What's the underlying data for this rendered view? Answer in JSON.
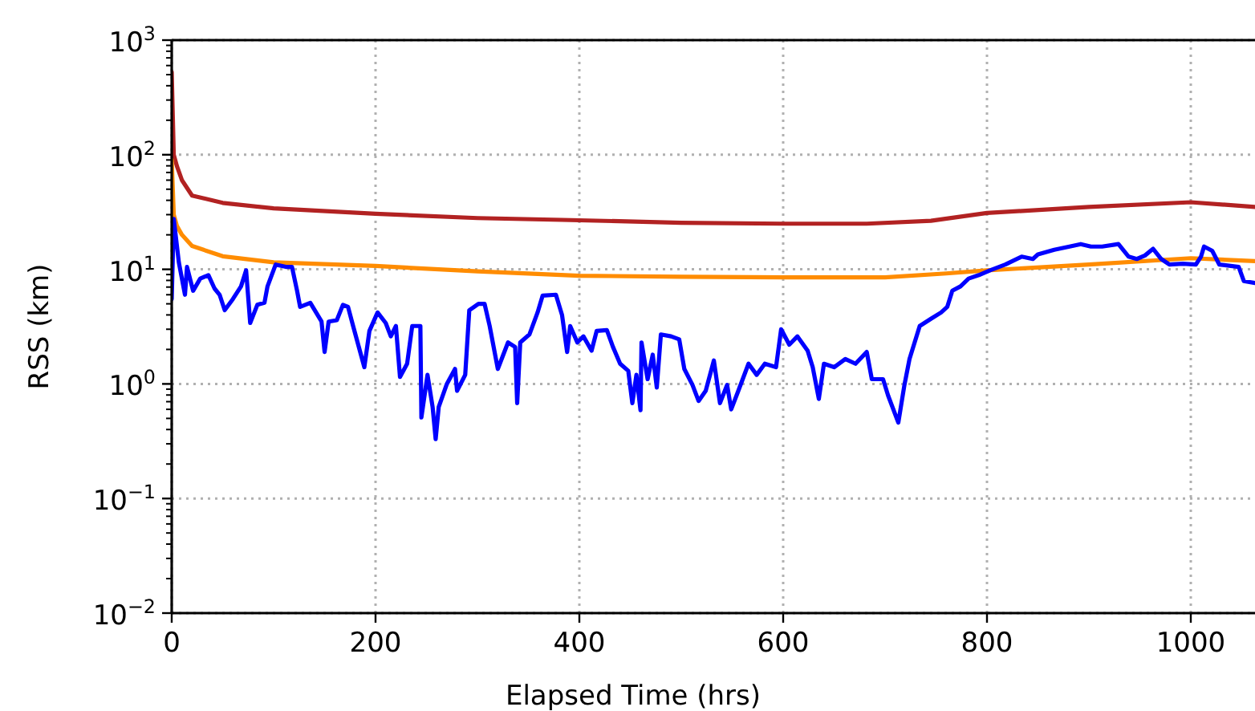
{
  "chart_data": {
    "type": "line",
    "xlabel": "Elapsed Time (hrs)",
    "ylabel": "RSS (km)",
    "log": "y",
    "grid": true,
    "marker": "none",
    "line_style": "solid",
    "xlim": [
      0,
      1063
    ],
    "xticks": [
      0,
      200,
      400,
      600,
      800,
      1000
    ],
    "ylim": [
      0.01,
      1000
    ],
    "yticks": [
      {
        "value": 0.01,
        "label": "10$^{−2}$"
      },
      {
        "value": 0.1,
        "label": "10$^{−1}$"
      },
      {
        "value": 1,
        "label": "10$^{0}$"
      },
      {
        "value": 10,
        "label": "10$^{1}$"
      },
      {
        "value": 100,
        "label": "10$^{2}$"
      },
      {
        "value": 1000,
        "label": "10$^{3}$"
      }
    ],
    "series": [
      {
        "color": "#b22222",
        "x": [
          0,
          2,
          5,
          10,
          20,
          50,
          100,
          200,
          300,
          383,
          500,
          600,
          682,
          745,
          800,
          900,
          1000,
          1063
        ],
        "values": [
          525,
          100,
          80,
          60,
          44,
          38,
          34,
          30.5,
          28,
          27,
          25.5,
          25,
          25,
          26.5,
          31,
          35,
          38.5,
          35
        ]
      },
      {
        "color": "#ff8c00",
        "x": [
          0,
          2,
          5,
          10,
          20,
          50,
          100,
          200,
          300,
          400,
          500,
          600,
          700,
          760,
          800,
          900,
          1000,
          1063
        ],
        "values": [
          90,
          30,
          24,
          20,
          16,
          13,
          11.5,
          10.7,
          9.6,
          8.8,
          8.6,
          8.5,
          8.5,
          9.2,
          9.8,
          11,
          12.5,
          11.8
        ]
      },
      {
        "color": "#0000ff",
        "x": [
          0,
          2,
          7,
          13,
          15,
          21,
          28,
          36,
          42,
          47,
          52,
          60,
          68,
          73,
          77,
          84,
          91,
          94,
          102,
          112,
          118,
          123,
          126,
          136,
          147,
          150,
          154,
          162,
          168,
          173,
          178,
          189,
          194,
          202,
          210,
          215,
          220,
          224,
          231,
          236,
          244,
          245,
          251,
          256,
          259,
          262,
          270,
          278,
          280,
          288,
          292,
          301,
          307,
          312,
          320,
          330,
          337,
          339,
          342,
          351,
          359,
          364,
          377,
          383,
          388,
          391,
          398,
          404,
          412,
          417,
          427,
          433,
          440,
          448,
          452,
          456,
          460,
          461,
          467,
          472,
          476,
          480,
          490,
          498,
          503,
          511,
          517,
          524,
          532,
          538,
          545,
          549,
          556,
          566,
          574,
          582,
          593,
          598,
          606,
          614,
          624,
          629,
          635,
          640,
          650,
          661,
          671,
          682,
          687,
          698,
          703,
          713,
          719,
          724,
          734,
          745,
          755,
          761,
          766,
          774,
          782,
          792,
          803,
          818,
          834,
          845,
          850,
          866,
          881,
          892,
          902,
          913,
          929,
          939,
          947,
          955,
          963,
          971,
          979,
          992,
          1005,
          1010,
          1013,
          1021,
          1028,
          1047,
          1052,
          1063
        ],
        "values": [
          5.5,
          27.5,
          11.5,
          6.0,
          10.5,
          6.5,
          8.3,
          8.9,
          6.8,
          6.0,
          4.4,
          5.5,
          7.1,
          9.8,
          3.4,
          4.9,
          5.1,
          7.1,
          11,
          10.5,
          10.5,
          6.5,
          4.7,
          5.1,
          3.5,
          1.9,
          3.5,
          3.6,
          4.9,
          4.7,
          3.2,
          1.4,
          2.9,
          4.2,
          3.4,
          2.6,
          3.2,
          1.15,
          1.5,
          3.2,
          3.2,
          0.51,
          1.2,
          0.63,
          0.33,
          0.63,
          1.0,
          1.35,
          0.87,
          1.2,
          4.4,
          5.0,
          5.0,
          3.2,
          1.35,
          2.3,
          2.1,
          0.68,
          2.3,
          2.7,
          4.2,
          5.9,
          6.0,
          4.0,
          1.9,
          3.2,
          2.3,
          2.6,
          1.95,
          2.9,
          2.95,
          2.1,
          1.5,
          1.3,
          0.68,
          1.2,
          0.59,
          2.3,
          1.1,
          1.8,
          0.93,
          2.7,
          2.6,
          2.45,
          1.35,
          0.98,
          0.71,
          0.87,
          1.6,
          0.68,
          0.98,
          0.6,
          0.87,
          1.5,
          1.2,
          1.5,
          1.4,
          3.0,
          2.2,
          2.6,
          1.95,
          1.4,
          0.74,
          1.5,
          1.4,
          1.65,
          1.5,
          1.9,
          1.1,
          1.1,
          0.79,
          0.46,
          0.98,
          1.65,
          3.2,
          3.7,
          4.2,
          4.7,
          6.5,
          7.1,
          8.3,
          8.9,
          9.8,
          11,
          12.9,
          12.3,
          13.5,
          14.8,
          15.8,
          16.6,
          15.8,
          15.8,
          16.6,
          12.9,
          12.3,
          13.2,
          15.1,
          12.3,
          11,
          11.2,
          11,
          12.9,
          15.8,
          14.5,
          11,
          10.5,
          7.9,
          7.6
        ]
      }
    ]
  }
}
